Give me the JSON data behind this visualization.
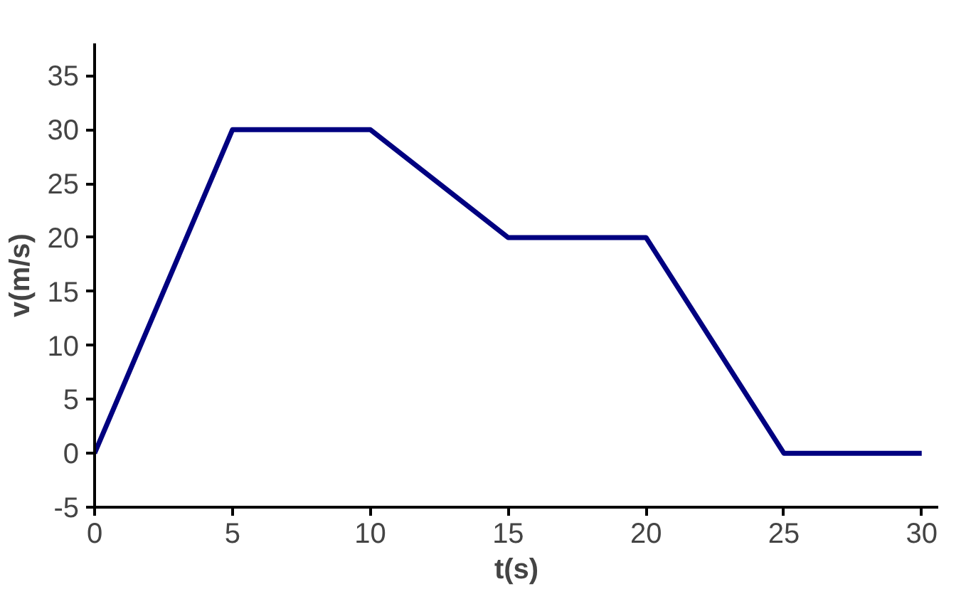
{
  "chart_data": {
    "type": "line",
    "xlabel": "t(s)",
    "ylabel": "v(m/s)",
    "x": [
      0,
      5,
      10,
      15,
      20,
      25,
      30
    ],
    "series": [
      {
        "color": "#000080",
        "values": [
          0,
          30,
          30,
          20,
          20,
          0,
          0
        ]
      }
    ],
    "xlim": [
      0,
      30.6
    ],
    "ylim": [
      -5,
      38
    ],
    "xticks": [
      0,
      5,
      10,
      15,
      20,
      25,
      30
    ],
    "yticks": [
      -5,
      0,
      5,
      10,
      15,
      20,
      25,
      30,
      35
    ],
    "grid": false,
    "marker": "none",
    "line_style": "solid"
  }
}
